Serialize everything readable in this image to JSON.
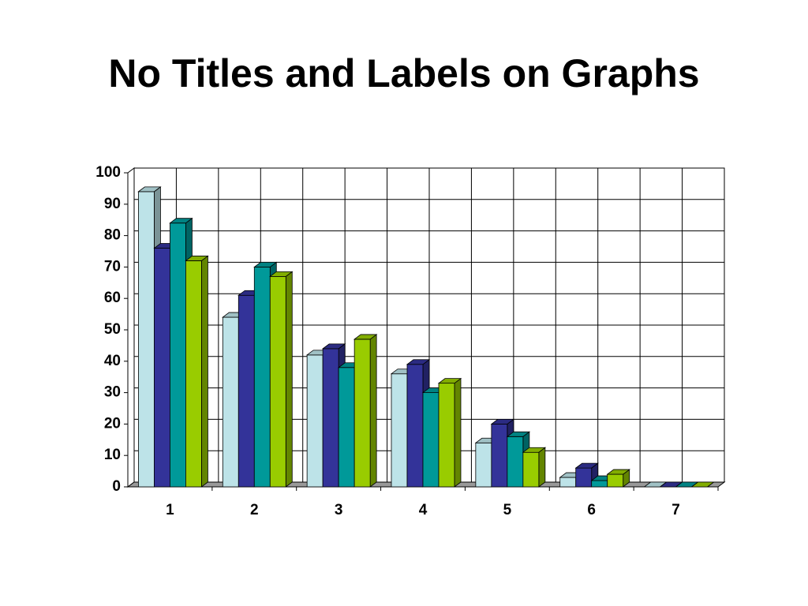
{
  "chart_data": {
    "type": "bar3d",
    "title": "No Titles and Labels on Graphs",
    "categories": [
      "1",
      "2",
      "3",
      "4",
      "5",
      "6",
      "7"
    ],
    "series": [
      {
        "color": "#bde3e8",
        "values": [
          94,
          54,
          42,
          36,
          14,
          3,
          0
        ]
      },
      {
        "color": "#333399",
        "values": [
          76,
          61,
          44,
          39,
          20,
          6,
          0
        ]
      },
      {
        "color": "#009999",
        "values": [
          84,
          70,
          38,
          30,
          16,
          2,
          0
        ]
      },
      {
        "color": "#99cc00",
        "values": [
          72,
          67,
          47,
          33,
          11,
          4,
          0
        ]
      }
    ],
    "ylim": [
      0,
      100
    ],
    "yticks": [
      0,
      10,
      20,
      30,
      40,
      50,
      60,
      70,
      80,
      90,
      100
    ],
    "grid": true
  }
}
